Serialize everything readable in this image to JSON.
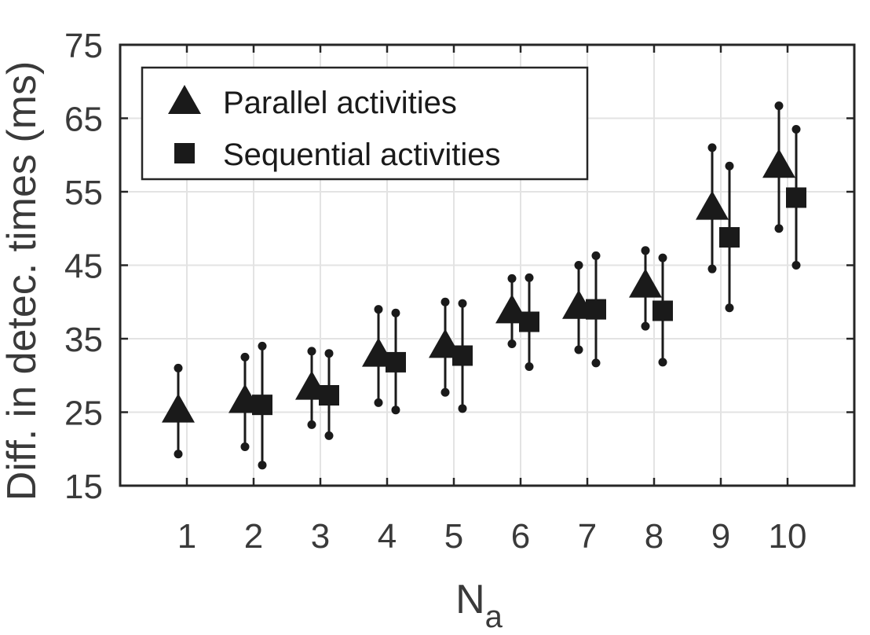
{
  "chart_data": {
    "type": "scatter",
    "title": "",
    "xlabel": "N",
    "xlabel_subscript": "a",
    "ylabel": "Diff. in detec. times (ms)",
    "categories": [
      "1",
      "2",
      "3",
      "4",
      "5",
      "6",
      "7",
      "8",
      "9",
      "10"
    ],
    "xlim": [
      0,
      11
    ],
    "ylim": [
      15,
      75
    ],
    "yticks": [
      "15",
      "25",
      "35",
      "45",
      "55",
      "65",
      "75"
    ],
    "grid": true,
    "legend_position": "top-left",
    "marker_color": "#1a1a1a",
    "series": [
      {
        "name": "Parallel activities",
        "marker": "triangle",
        "points": [
          {
            "x": 1,
            "y": 25.2,
            "low": 19.3,
            "high": 31.0
          },
          {
            "x": 2,
            "y": 26.5,
            "low": 20.3,
            "high": 32.5
          },
          {
            "x": 3,
            "y": 28.3,
            "low": 23.3,
            "high": 33.3
          },
          {
            "x": 4,
            "y": 32.8,
            "low": 26.3,
            "high": 39.0
          },
          {
            "x": 5,
            "y": 34.0,
            "low": 27.7,
            "high": 40.0
          },
          {
            "x": 6,
            "y": 38.7,
            "low": 34.3,
            "high": 43.2
          },
          {
            "x": 7,
            "y": 39.3,
            "low": 33.5,
            "high": 45.0
          },
          {
            "x": 8,
            "y": 42.2,
            "low": 36.7,
            "high": 47.0
          },
          {
            "x": 9,
            "y": 52.8,
            "low": 44.5,
            "high": 61.0
          },
          {
            "x": 10,
            "y": 58.5,
            "low": 50.0,
            "high": 66.7
          }
        ]
      },
      {
        "name": "Sequential activities",
        "marker": "square",
        "points": [
          {
            "x": 2,
            "y": 26.0,
            "low": 17.8,
            "high": 34.0
          },
          {
            "x": 3,
            "y": 27.3,
            "low": 21.8,
            "high": 33.0
          },
          {
            "x": 4,
            "y": 31.8,
            "low": 25.3,
            "high": 38.5
          },
          {
            "x": 5,
            "y": 32.7,
            "low": 25.5,
            "high": 39.8
          },
          {
            "x": 6,
            "y": 37.3,
            "low": 31.2,
            "high": 43.3
          },
          {
            "x": 7,
            "y": 39.0,
            "low": 31.7,
            "high": 46.3
          },
          {
            "x": 8,
            "y": 38.8,
            "low": 31.8,
            "high": 46.0
          },
          {
            "x": 9,
            "y": 48.8,
            "low": 39.2,
            "high": 58.5
          },
          {
            "x": 10,
            "y": 54.2,
            "low": 45.0,
            "high": 63.5
          }
        ]
      }
    ]
  }
}
